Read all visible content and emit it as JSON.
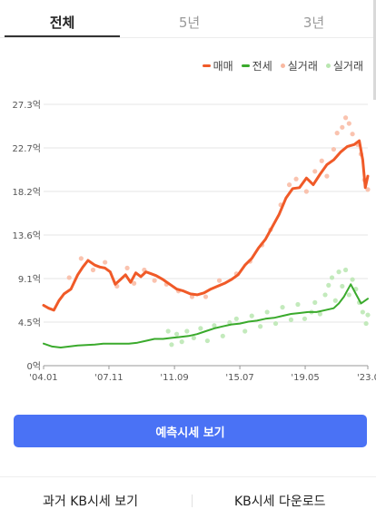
{
  "tabs": [
    "전체",
    "5년",
    "3년"
  ],
  "legend": [
    {
      "label": "매매",
      "color": "#f05a28",
      "kind": "line"
    },
    {
      "label": "전세",
      "color": "#3aaa2c",
      "kind": "line"
    },
    {
      "label": "실거래",
      "color": "#f9b9a1",
      "kind": "dot"
    },
    {
      "label": "실거래",
      "color": "#b9e6b0",
      "kind": "dot"
    }
  ],
  "cta_label": "예측시세 보기",
  "bottom_buttons": [
    "과거 KB시세 보기",
    "KB시세 다운로드"
  ],
  "chart_data": {
    "type": "line",
    "y_unit": "억",
    "y_ticks": [
      "0억",
      "4.5억",
      "9.1억",
      "13.6억",
      "18.2억",
      "22.7억",
      "27.3억"
    ],
    "y_tick_values": [
      0,
      4.55,
      9.1,
      13.65,
      18.2,
      22.75,
      27.3
    ],
    "ylim": [
      0,
      27.3
    ],
    "x_ticks": [
      "'04.01",
      "'07.11",
      "'11.09",
      "'15.07",
      "'19.05",
      "'23.0"
    ],
    "x_tick_values": [
      2004.0,
      2007.83,
      2011.67,
      2015.5,
      2019.33,
      2023.0
    ],
    "xlim": [
      2004.0,
      2023.0
    ],
    "grid": "horizontal",
    "legend_position": "top-right",
    "series": [
      {
        "name": "매매",
        "color": "#f05a28",
        "x": [
          2004.0,
          2004.3,
          2004.6,
          2004.9,
          2005.2,
          2005.6,
          2006.0,
          2006.3,
          2006.6,
          2007.0,
          2007.3,
          2007.6,
          2007.9,
          2008.2,
          2008.5,
          2008.8,
          2009.1,
          2009.4,
          2009.7,
          2010.0,
          2010.3,
          2010.6,
          2011.0,
          2011.4,
          2011.8,
          2012.2,
          2012.6,
          2013.0,
          2013.4,
          2013.8,
          2014.2,
          2014.6,
          2015.0,
          2015.4,
          2015.8,
          2016.2,
          2016.6,
          2017.0,
          2017.4,
          2017.8,
          2018.2,
          2018.6,
          2019.0,
          2019.4,
          2019.8,
          2020.2,
          2020.6,
          2021.0,
          2021.4,
          2021.8,
          2022.2,
          2022.5,
          2022.7,
          2022.85,
          2023.0
        ],
        "y": [
          6.3,
          6.0,
          5.8,
          6.8,
          7.5,
          8.0,
          9.5,
          10.3,
          11.0,
          10.5,
          10.3,
          10.2,
          9.8,
          8.5,
          9.0,
          9.5,
          8.7,
          9.7,
          9.3,
          9.8,
          9.6,
          9.4,
          9.0,
          8.5,
          8.0,
          7.8,
          7.5,
          7.4,
          7.6,
          8.0,
          8.3,
          8.6,
          9.0,
          9.5,
          10.5,
          11.2,
          12.3,
          13.2,
          14.5,
          15.8,
          17.5,
          18.5,
          18.6,
          19.6,
          18.9,
          20.0,
          21.0,
          21.5,
          22.3,
          22.9,
          23.1,
          23.5,
          21.5,
          18.6,
          19.8
        ]
      },
      {
        "name": "전세",
        "color": "#3aaa2c",
        "x": [
          2004.0,
          2004.5,
          2005.0,
          2005.5,
          2006.0,
          2006.5,
          2007.0,
          2007.5,
          2008.0,
          2008.5,
          2009.0,
          2009.5,
          2010.0,
          2010.5,
          2011.0,
          2011.5,
          2012.0,
          2012.5,
          2013.0,
          2013.5,
          2014.0,
          2014.5,
          2015.0,
          2015.5,
          2016.0,
          2016.5,
          2017.0,
          2017.5,
          2018.0,
          2018.5,
          2019.0,
          2019.5,
          2020.0,
          2020.5,
          2021.0,
          2021.3,
          2021.6,
          2022.0,
          2022.3,
          2022.6,
          2023.0
        ],
        "y": [
          2.3,
          2.0,
          1.9,
          2.0,
          2.1,
          2.15,
          2.2,
          2.3,
          2.3,
          2.3,
          2.3,
          2.4,
          2.6,
          2.8,
          2.8,
          2.9,
          3.0,
          3.1,
          3.3,
          3.6,
          3.9,
          4.1,
          4.3,
          4.4,
          4.6,
          4.7,
          4.9,
          5.0,
          5.2,
          5.4,
          5.5,
          5.6,
          5.6,
          5.8,
          6.0,
          6.5,
          7.2,
          8.5,
          7.5,
          6.5,
          7.0
        ]
      }
    ],
    "scatter_series": [
      {
        "name": "실거래",
        "color": "#f9b9a1",
        "points": [
          [
            2005.5,
            9.2
          ],
          [
            2006.2,
            11.2
          ],
          [
            2006.9,
            10.0
          ],
          [
            2007.6,
            10.8
          ],
          [
            2008.3,
            8.3
          ],
          [
            2008.9,
            10.2
          ],
          [
            2009.3,
            8.6
          ],
          [
            2009.9,
            10.0
          ],
          [
            2010.5,
            8.9
          ],
          [
            2011.2,
            8.5
          ],
          [
            2011.9,
            7.8
          ],
          [
            2012.7,
            7.2
          ],
          [
            2013.5,
            7.2
          ],
          [
            2014.3,
            8.9
          ],
          [
            2015.3,
            9.6
          ],
          [
            2016.1,
            10.9
          ],
          [
            2016.8,
            12.6
          ],
          [
            2017.3,
            14.2
          ],
          [
            2017.9,
            16.8
          ],
          [
            2018.4,
            18.9
          ],
          [
            2018.8,
            19.5
          ],
          [
            2019.4,
            18.2
          ],
          [
            2019.9,
            20.3
          ],
          [
            2020.3,
            21.4
          ],
          [
            2020.6,
            19.8
          ],
          [
            2021.0,
            22.6
          ],
          [
            2021.2,
            24.3
          ],
          [
            2021.5,
            24.9
          ],
          [
            2021.7,
            25.9
          ],
          [
            2021.9,
            25.3
          ],
          [
            2022.1,
            24.2
          ],
          [
            2022.4,
            23.1
          ],
          [
            2022.6,
            22.1
          ],
          [
            2022.8,
            19.4
          ],
          [
            2023.0,
            18.4
          ]
        ]
      },
      {
        "name": "실거래",
        "color": "#b9e6b0",
        "points": [
          [
            2011.3,
            3.6
          ],
          [
            2011.5,
            2.2
          ],
          [
            2011.8,
            3.3
          ],
          [
            2012.1,
            2.5
          ],
          [
            2012.4,
            3.6
          ],
          [
            2012.8,
            2.9
          ],
          [
            2013.2,
            3.9
          ],
          [
            2013.6,
            2.6
          ],
          [
            2014.0,
            4.2
          ],
          [
            2014.5,
            3.1
          ],
          [
            2014.9,
            4.5
          ],
          [
            2015.3,
            4.9
          ],
          [
            2015.8,
            3.6
          ],
          [
            2016.2,
            5.2
          ],
          [
            2016.7,
            4.1
          ],
          [
            2017.1,
            5.6
          ],
          [
            2017.6,
            4.4
          ],
          [
            2018.0,
            6.1
          ],
          [
            2018.5,
            4.8
          ],
          [
            2018.9,
            6.4
          ],
          [
            2019.3,
            4.9
          ],
          [
            2019.7,
            5.6
          ],
          [
            2019.9,
            6.6
          ],
          [
            2020.2,
            5.4
          ],
          [
            2020.5,
            7.4
          ],
          [
            2020.7,
            8.4
          ],
          [
            2020.9,
            9.2
          ],
          [
            2021.1,
            6.8
          ],
          [
            2021.3,
            9.8
          ],
          [
            2021.5,
            8.3
          ],
          [
            2021.7,
            10.0
          ],
          [
            2021.9,
            7.4
          ],
          [
            2022.1,
            9.0
          ],
          [
            2022.3,
            8.0
          ],
          [
            2022.5,
            6.6
          ],
          [
            2022.7,
            5.6
          ],
          [
            2022.9,
            4.4
          ],
          [
            2023.0,
            5.3
          ]
        ]
      }
    ]
  }
}
